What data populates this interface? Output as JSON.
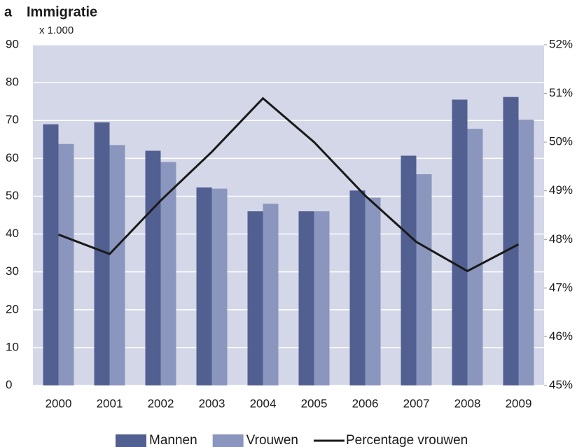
{
  "chart_data": {
    "type": "bar",
    "panel": "a",
    "title": "Immigratie",
    "y_unit": "x 1.000",
    "categories": [
      "2000",
      "2001",
      "2002",
      "2003",
      "2004",
      "2005",
      "2006",
      "2007",
      "2008",
      "2009"
    ],
    "series": [
      {
        "name": "Mannen",
        "color": "#525f91",
        "values": [
          69,
          69.5,
          62,
          52.3,
          46,
          46,
          51.5,
          60.7,
          75.5,
          76.2
        ]
      },
      {
        "name": "Vrouwen",
        "color": "#8a96bd",
        "values": [
          63.8,
          63.5,
          59,
          52,
          48,
          46,
          49.6,
          55.8,
          67.8,
          70.2
        ]
      },
      {
        "name": "Percentage vrouwen",
        "color": "#1a1a1a",
        "type": "line",
        "axis": "y2",
        "values": [
          48.1,
          47.7,
          48.8,
          49.8,
          50.9,
          50.0,
          48.9,
          47.95,
          47.35,
          47.9
        ]
      }
    ],
    "ylim": [
      0,
      90
    ],
    "yticks": [
      0,
      10,
      20,
      30,
      40,
      50,
      60,
      70,
      80,
      90
    ],
    "y2lim": [
      45,
      52
    ],
    "y2ticks": [
      {
        "value": 45,
        "label": "45%"
      },
      {
        "value": 46,
        "label": "46%"
      },
      {
        "value": 47,
        "label": "47%"
      },
      {
        "value": 48,
        "label": "48%"
      },
      {
        "value": 49,
        "label": "49%"
      },
      {
        "value": 50,
        "label": "50%"
      },
      {
        "value": 51,
        "label": "51%"
      },
      {
        "value": 52,
        "label": "52%"
      }
    ],
    "grid": true,
    "background": "#d3d7e8",
    "legend": "bottom"
  }
}
